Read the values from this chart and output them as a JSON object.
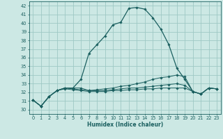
{
  "xlabel": "Humidex (Indice chaleur)",
  "bg_color": "#cce8e4",
  "grid_color": "#9ec8c4",
  "line_color": "#1a5f5f",
  "xlim": [
    -0.5,
    23.5
  ],
  "ylim": [
    29.5,
    42.5
  ],
  "yticks": [
    30,
    31,
    32,
    33,
    34,
    35,
    36,
    37,
    38,
    39,
    40,
    41,
    42
  ],
  "xticks": [
    0,
    1,
    2,
    3,
    4,
    5,
    6,
    7,
    8,
    9,
    10,
    11,
    12,
    13,
    14,
    15,
    16,
    17,
    18,
    19,
    20,
    21,
    22,
    23
  ],
  "series1": {
    "x": [
      0,
      1,
      2,
      3,
      4,
      5,
      6,
      7,
      8,
      9,
      10,
      11,
      12,
      13,
      14,
      15,
      16,
      17,
      18,
      19,
      20,
      21,
      22,
      23
    ],
    "y": [
      31.1,
      30.4,
      31.5,
      32.2,
      32.5,
      32.5,
      33.5,
      36.5,
      37.5,
      38.5,
      39.8,
      40.1,
      41.7,
      41.8,
      41.6,
      40.6,
      39.3,
      37.5,
      34.8,
      33.5,
      32.1,
      31.8,
      32.5,
      32.4
    ]
  },
  "series2": {
    "x": [
      0,
      1,
      2,
      3,
      4,
      5,
      6,
      7,
      8,
      9,
      10,
      11,
      12,
      13,
      14,
      15,
      16,
      17,
      18,
      19,
      20,
      21,
      22,
      23
    ],
    "y": [
      31.1,
      30.4,
      31.5,
      32.2,
      32.5,
      32.5,
      32.5,
      32.2,
      32.3,
      32.4,
      32.5,
      32.7,
      32.8,
      33.0,
      33.2,
      33.5,
      33.7,
      33.8,
      34.0,
      33.8,
      32.1,
      31.8,
      32.5,
      32.4
    ]
  },
  "series3": {
    "x": [
      0,
      1,
      2,
      3,
      4,
      5,
      6,
      7,
      8,
      9,
      10,
      11,
      12,
      13,
      14,
      15,
      16,
      17,
      18,
      19,
      20,
      21,
      22,
      23
    ],
    "y": [
      31.1,
      30.4,
      31.5,
      32.2,
      32.5,
      32.4,
      32.3,
      32.2,
      32.2,
      32.2,
      32.3,
      32.4,
      32.5,
      32.5,
      32.6,
      32.7,
      32.8,
      32.9,
      33.0,
      32.8,
      32.1,
      31.8,
      32.5,
      32.4
    ]
  },
  "series4": {
    "x": [
      0,
      1,
      2,
      3,
      4,
      5,
      6,
      7,
      8,
      9,
      10,
      11,
      12,
      13,
      14,
      15,
      16,
      17,
      18,
      19,
      20,
      21,
      22,
      23
    ],
    "y": [
      31.1,
      30.4,
      31.5,
      32.2,
      32.4,
      32.3,
      32.2,
      32.1,
      32.1,
      32.1,
      32.2,
      32.2,
      32.3,
      32.3,
      32.4,
      32.4,
      32.5,
      32.5,
      32.5,
      32.5,
      32.1,
      31.8,
      32.5,
      32.4
    ]
  }
}
